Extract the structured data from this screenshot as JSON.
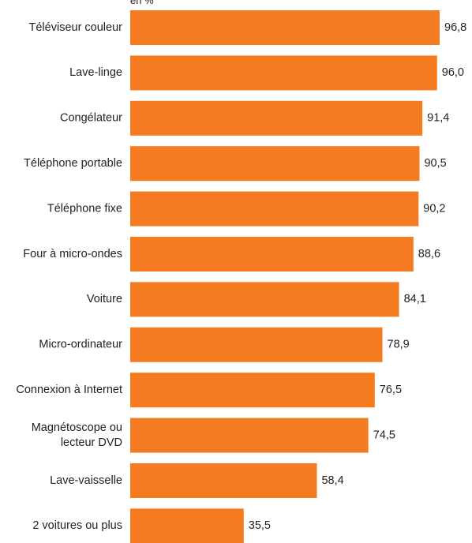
{
  "chart_data": {
    "type": "bar",
    "orientation": "horizontal",
    "unit": "en %",
    "categories": [
      "Téléviseur couleur",
      "Lave-linge",
      "Congélateur",
      "Téléphone portable",
      "Téléphone fixe",
      "Four à micro-ondes",
      "Voiture",
      "Micro-ordinateur",
      "Connexion à Internet",
      [
        "Magnétoscope ou",
        "lecteur DVD"
      ],
      "Lave-vaisselle",
      "2 voitures ou plus"
    ],
    "values": [
      96.8,
      96.0,
      91.4,
      90.5,
      90.2,
      88.6,
      84.1,
      78.9,
      76.5,
      74.5,
      58.4,
      35.5
    ],
    "value_labels": [
      "96,8",
      "96,0",
      "91,4",
      "90,5",
      "90,2",
      "88,6",
      "84,1",
      "78,9",
      "76,5",
      "74,5",
      "58,4",
      "35,5"
    ],
    "bar_color": "#f47b20",
    "grid": false,
    "legend": "none"
  }
}
